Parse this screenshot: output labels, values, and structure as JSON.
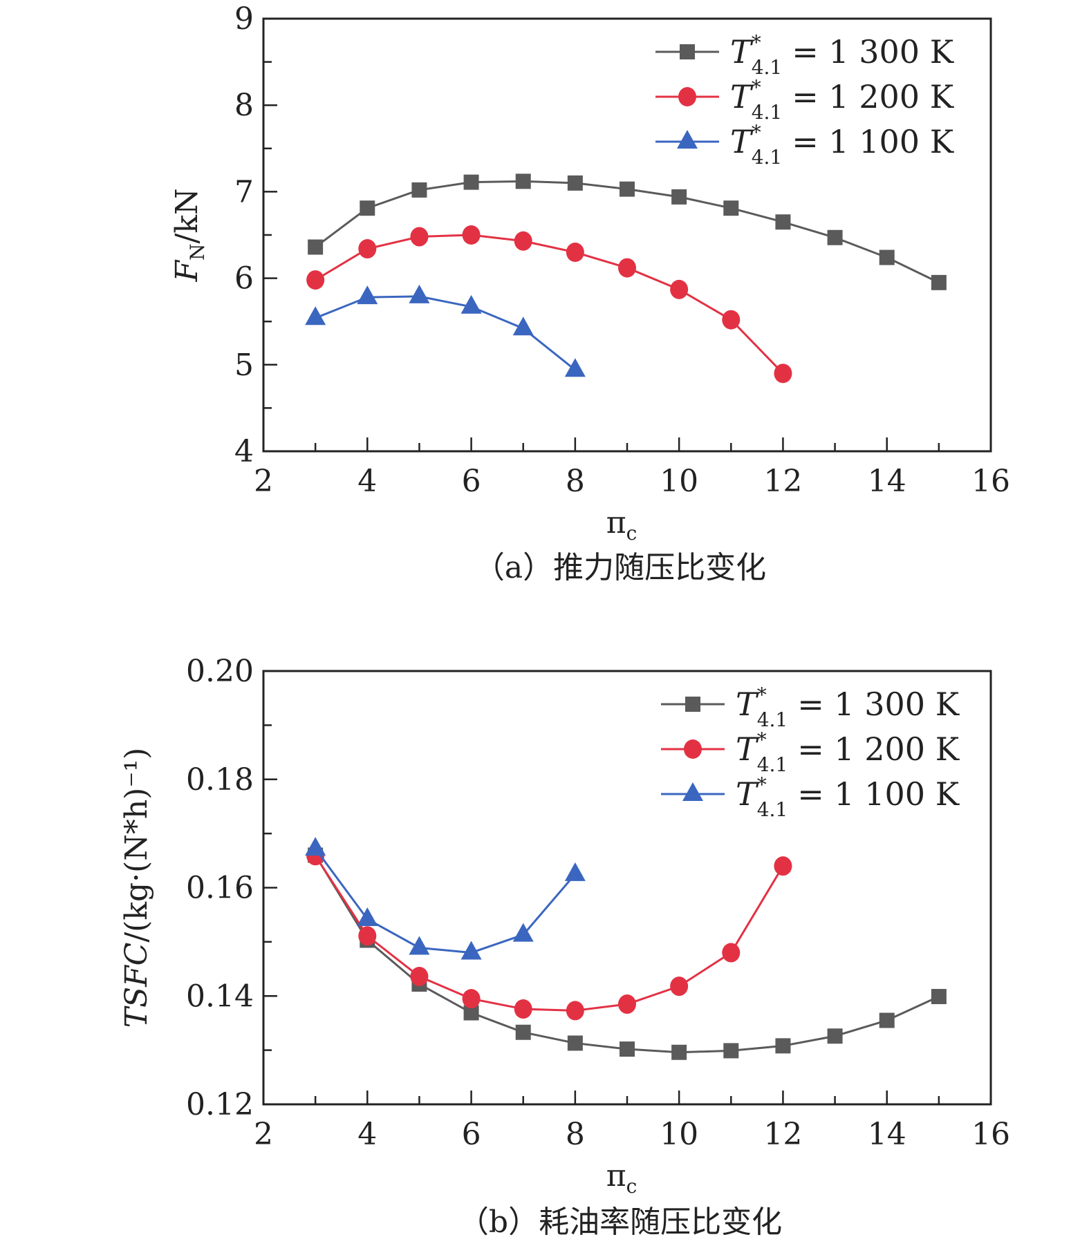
{
  "chart_data": [
    {
      "type": "line",
      "caption": "（a）推力随压比变化",
      "xlabel": "π",
      "xlabel_sub": "c",
      "ylabel": "F",
      "ylabel_sub": "N",
      "ylabel_unit": "/kN",
      "xlim": [
        2,
        16
      ],
      "ylim": [
        4,
        9
      ],
      "xticks": [
        "2",
        "4",
        "6",
        "8",
        "10",
        "12",
        "14",
        "16"
      ],
      "yticks": [
        "4",
        "5",
        "6",
        "7",
        "8",
        "9"
      ],
      "legend_position": "top-right",
      "series": [
        {
          "name": "T*4.1 = 1 300 K",
          "sym": "T",
          "sup": "*",
          "sub": "4.1",
          "rest": "= 1 300 K",
          "color": "#5a5a5a",
          "marker": "square",
          "x": [
            3,
            4,
            5,
            6,
            7,
            8,
            9,
            10,
            11,
            12,
            13,
            14,
            15
          ],
          "y": [
            6.36,
            6.81,
            7.02,
            7.11,
            7.12,
            7.1,
            7.03,
            6.94,
            6.81,
            6.65,
            6.47,
            6.24,
            5.95
          ]
        },
        {
          "name": "T*4.1 = 1 200 K",
          "sym": "T",
          "sup": "*",
          "sub": "4.1",
          "rest": "= 1 200 K",
          "color": "#e33144",
          "marker": "circle",
          "x": [
            3,
            4,
            5,
            6,
            7,
            8,
            9,
            10,
            11,
            12
          ],
          "y": [
            5.98,
            6.34,
            6.48,
            6.5,
            6.43,
            6.3,
            6.12,
            5.87,
            5.52,
            4.9
          ]
        },
        {
          "name": "T*4.1 = 1 100 K",
          "sym": "T",
          "sup": "*",
          "sub": "4.1",
          "rest": "= 1 100 K",
          "color": "#3a66c0",
          "marker": "triangle",
          "x": [
            3,
            4,
            5,
            6,
            7,
            8
          ],
          "y": [
            5.54,
            5.78,
            5.79,
            5.67,
            5.42,
            4.94
          ]
        }
      ]
    },
    {
      "type": "line",
      "caption": "（b）耗油率随压比变化",
      "xlabel": "π",
      "xlabel_sub": "c",
      "ylabel": "TSFC",
      "ylabel_sub": "",
      "ylabel_unit": "/(kg·(N*h)⁻¹)",
      "xlim": [
        2,
        16
      ],
      "ylim": [
        0.12,
        0.2
      ],
      "xticks": [
        "2",
        "4",
        "6",
        "8",
        "10",
        "12",
        "14",
        "16"
      ],
      "yticks": [
        "0.12",
        "0.14",
        "0.16",
        "0.18",
        "0.20"
      ],
      "legend_position": "top-right",
      "series": [
        {
          "name": "T*4.1 = 1 300 K",
          "sym": "T",
          "sup": "*",
          "sub": "4.1",
          "rest": "= 1 300 K",
          "color": "#5a5a5a",
          "marker": "square",
          "x": [
            3,
            4,
            5,
            6,
            7,
            8,
            9,
            10,
            11,
            12,
            13,
            14,
            15
          ],
          "y": [
            0.166,
            0.1503,
            0.1422,
            0.1369,
            0.1333,
            0.1313,
            0.1302,
            0.1296,
            0.1299,
            0.1308,
            0.1326,
            0.1355,
            0.1399
          ]
        },
        {
          "name": "T*4.1 = 1 200 K",
          "sym": "T",
          "sup": "*",
          "sub": "4.1",
          "rest": "= 1 200 K",
          "color": "#e33144",
          "marker": "circle",
          "x": [
            3,
            4,
            5,
            6,
            7,
            8,
            9,
            10,
            11,
            12
          ],
          "y": [
            0.1659,
            0.1511,
            0.1436,
            0.1395,
            0.1376,
            0.1373,
            0.1385,
            0.1418,
            0.148,
            0.164
          ]
        },
        {
          "name": "T*4.1 = 1 100 K",
          "sym": "T",
          "sup": "*",
          "sub": "4.1",
          "rest": "= 1 100 K",
          "color": "#3a66c0",
          "marker": "triangle",
          "x": [
            3,
            4,
            5,
            6,
            7,
            8
          ],
          "y": [
            0.1672,
            0.1542,
            0.1489,
            0.148,
            0.1513,
            0.1625
          ]
        }
      ]
    }
  ]
}
